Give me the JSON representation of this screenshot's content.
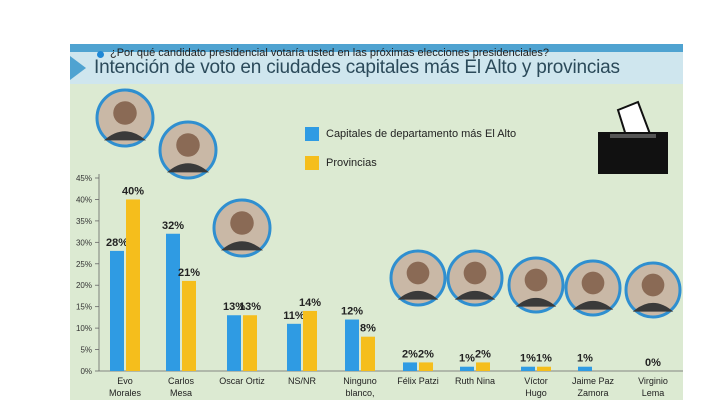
{
  "title": "Intención de voto en ciudades capitales más El Alto y provincias",
  "question": "¿Por qué candidato presidencial votaría usted en las próximas elecciones presidenciales?",
  "colors": {
    "series1": "#2f9be3",
    "series2": "#f5be1c",
    "panel": "#dcead2",
    "title_bar": "#cfe6ee",
    "accent": "#4fa3d1"
  },
  "icons": {
    "ballot_box": "ballot-box-icon",
    "bullet": "bullet-icon"
  },
  "chart_data": {
    "type": "bar",
    "title": "Intención de voto en ciudades capitales más El Alto y provincias",
    "xlabel": "",
    "ylabel": "",
    "ylim": [
      0,
      45
    ],
    "y_ticks": [
      "0%",
      "5%",
      "10%",
      "15%",
      "20%",
      "25%",
      "30%",
      "35%",
      "40%",
      "45%"
    ],
    "grid": false,
    "legend_position": "top-right",
    "categories": [
      [
        "Evo",
        "Morales"
      ],
      [
        "Carlos",
        "Mesa"
      ],
      [
        "Oscar Ortiz"
      ],
      [
        "NS/NR"
      ],
      [
        "Ninguno",
        "blanco,"
      ],
      [
        "Félix Patzi"
      ],
      [
        "Ruth Nina"
      ],
      [
        "Víctor",
        "Hugo"
      ],
      [
        "Jaime Paz",
        "Zamora"
      ],
      [
        "Virginio",
        "Lema"
      ]
    ],
    "series": [
      {
        "name": "Capitales de departamento más El Alto",
        "values": [
          28,
          32,
          13,
          11,
          12,
          2,
          1,
          1,
          1,
          0
        ]
      },
      {
        "name": "Provincias",
        "values": [
          40,
          21,
          13,
          14,
          8,
          2,
          2,
          1,
          null,
          null
        ]
      }
    ],
    "data_labels": [
      [
        "28%",
        "32%",
        "13%",
        "11%",
        "12%",
        "2%",
        "1%",
        "1%",
        "1%",
        "0%"
      ],
      [
        "40%",
        "21%",
        "13%",
        "14%",
        "8%",
        "2%",
        "2%",
        "1%",
        "",
        ""
      ]
    ]
  }
}
